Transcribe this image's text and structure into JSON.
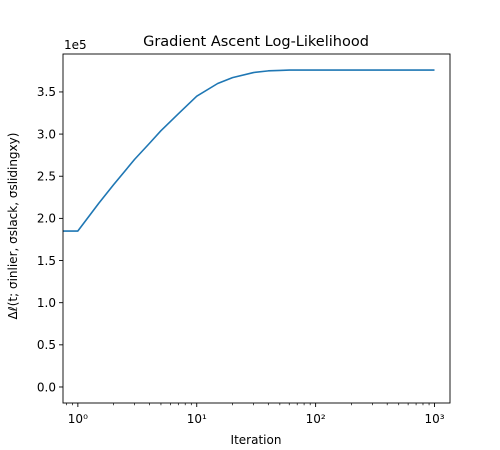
{
  "chart_data": {
    "type": "line",
    "title": "Gradient Ascent Log-Likelihood",
    "xlabel": "Iteration",
    "ylabel": "Δℓ(t; σinlier, σslack, σslidingxy)",
    "y_offset_text": "1e5",
    "xscale": "log",
    "xlim": [
      0.75,
      1350
    ],
    "ylim": [
      -0.19,
      3.95
    ],
    "x_ticks": [
      1,
      10,
      100,
      1000
    ],
    "x_tick_labels": [
      "10⁰",
      "10¹",
      "10²",
      "10³"
    ],
    "y_ticks": [
      0.0,
      0.5,
      1.0,
      1.5,
      2.0,
      2.5,
      3.0,
      3.5
    ],
    "y_tick_labels": [
      "0.0",
      "0.5",
      "1.0",
      "1.5",
      "2.0",
      "2.5",
      "3.0",
      "3.5"
    ],
    "grid": false,
    "series": [
      {
        "color": "#1f77b4",
        "x": [
          0.75,
          1,
          1.5,
          2,
          3,
          4,
          5,
          7,
          10,
          15,
          20,
          30,
          40,
          50,
          60,
          70,
          100,
          200,
          500,
          1000
        ],
        "y": [
          1.85,
          1.85,
          2.18,
          2.4,
          2.7,
          2.89,
          3.04,
          3.24,
          3.45,
          3.6,
          3.67,
          3.73,
          3.75,
          3.755,
          3.76,
          3.76,
          3.76,
          3.76,
          3.76,
          3.76
        ]
      }
    ]
  }
}
